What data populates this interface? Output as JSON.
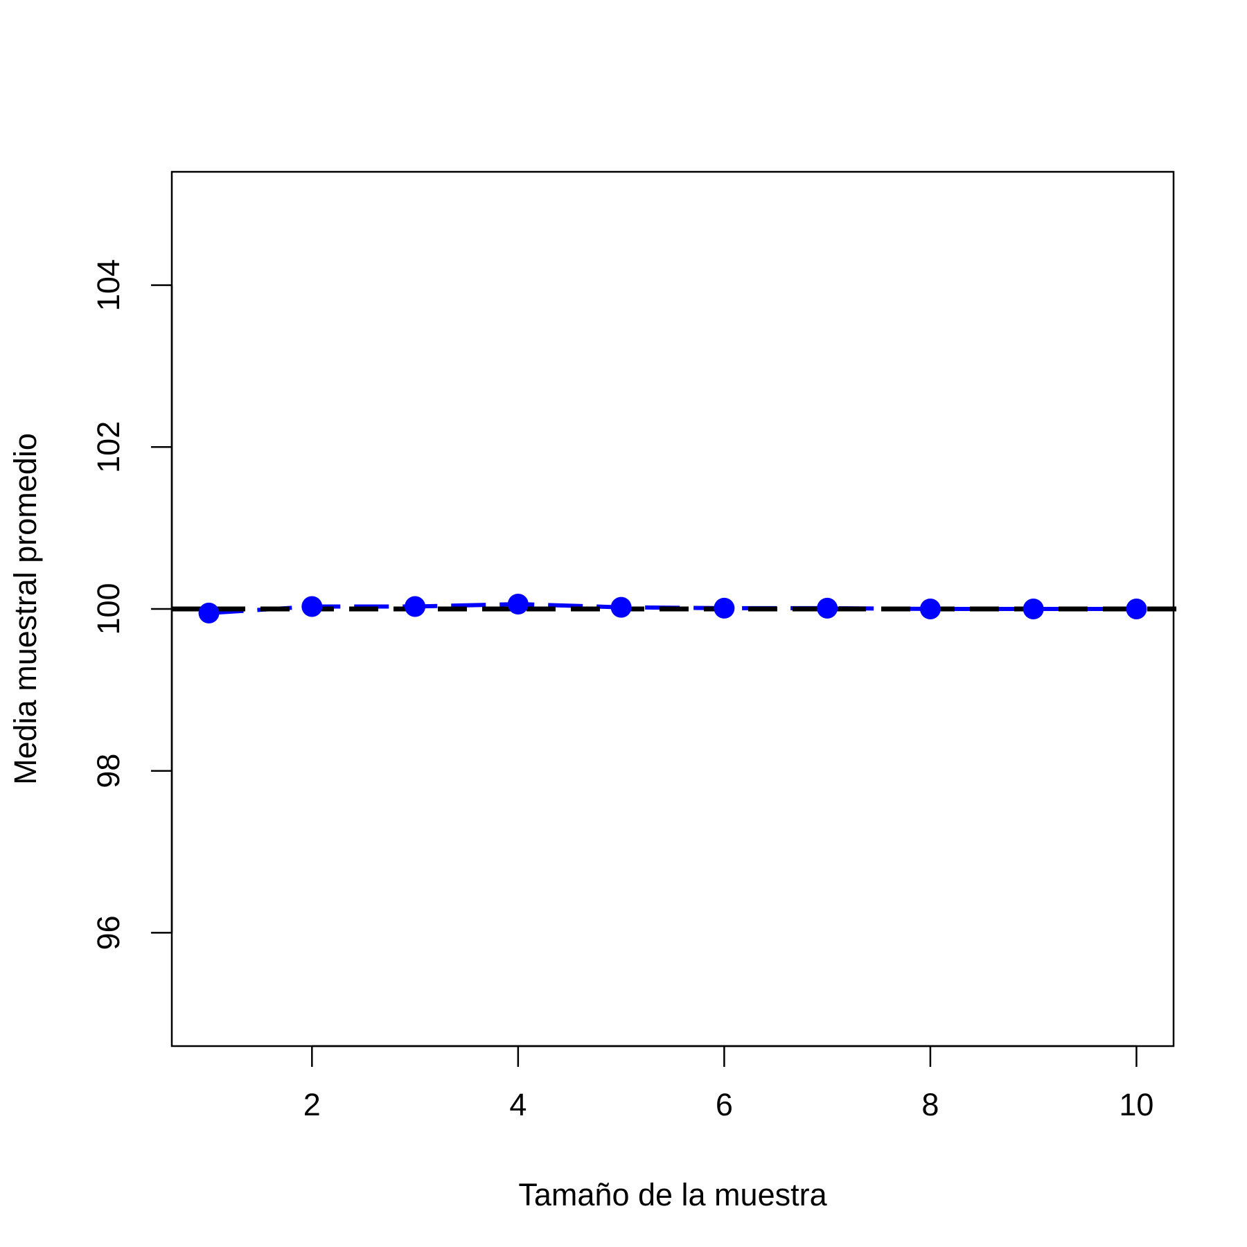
{
  "chart_data": {
    "type": "line",
    "title": "",
    "xlabel": "Tamaño de la muestra",
    "ylabel": "Media muestral promedio",
    "xlim": [
      0.64,
      10.36
    ],
    "ylim": [
      94.6,
      105.4
    ],
    "xticks": [
      2,
      4,
      6,
      8,
      10
    ],
    "yticks": [
      96,
      98,
      100,
      102,
      104
    ],
    "xtick_labels": [
      "2",
      "4",
      "6",
      "8",
      "10"
    ],
    "ytick_labels": [
      "96",
      "98",
      "100",
      "102",
      "104"
    ],
    "grid": false,
    "legend": "none",
    "series": [
      {
        "x": [
          1,
          2,
          3,
          4,
          5,
          6,
          7,
          8,
          9,
          10
        ],
        "values": [
          99.95,
          100.03,
          100.03,
          100.06,
          100.02,
          100.01,
          100.01,
          100.0,
          100.0,
          100.0
        ],
        "color": "#0000ff",
        "line_style": "dashed",
        "marker": "filled-circle"
      }
    ],
    "reference_lines": [
      {
        "y": 100,
        "color": "#000000",
        "line_style": "dashed"
      }
    ]
  }
}
